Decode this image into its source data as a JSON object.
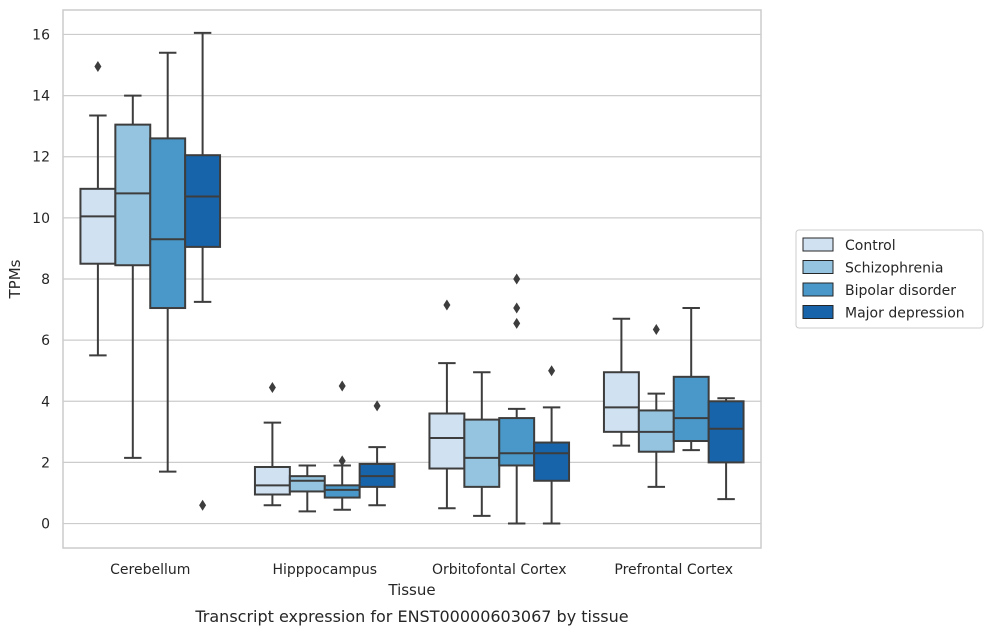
{
  "chart_data": {
    "type": "boxplot",
    "caption": "Transcript expression for ENST00000603067 by tissue",
    "xlabel": "Tissue",
    "ylabel": "TPMs",
    "ylim": [
      -0.8,
      16.8
    ],
    "yticks": [
      0,
      2,
      4,
      6,
      8,
      10,
      12,
      14,
      16
    ],
    "grid": "horizontal",
    "legend_position": "right",
    "categories": [
      "Cerebellum",
      "Hipppocampus",
      "Orbitofontal Cortex",
      "Prefrontal Cortex"
    ],
    "series": [
      {
        "name": "Control",
        "color": "#d0e1f2",
        "boxes": [
          {
            "whisker_low": 5.5,
            "q1": 8.5,
            "median": 10.05,
            "q3": 10.95,
            "whisker_high": 13.35,
            "outliers": [
              14.95
            ]
          },
          {
            "whisker_low": 0.6,
            "q1": 0.95,
            "median": 1.25,
            "q3": 1.85,
            "whisker_high": 3.3,
            "outliers": [
              4.45
            ]
          },
          {
            "whisker_low": 0.5,
            "q1": 1.8,
            "median": 2.8,
            "q3": 3.6,
            "whisker_high": 5.25,
            "outliers": [
              7.15
            ]
          },
          {
            "whisker_low": 2.55,
            "q1": 3.0,
            "median": 3.8,
            "q3": 4.95,
            "whisker_high": 6.7,
            "outliers": []
          }
        ]
      },
      {
        "name": "Schizophrenia",
        "color": "#94c4df",
        "boxes": [
          {
            "whisker_low": 2.15,
            "q1": 8.45,
            "median": 10.8,
            "q3": 13.05,
            "whisker_high": 14.0,
            "outliers": []
          },
          {
            "whisker_low": 0.4,
            "q1": 1.05,
            "median": 1.4,
            "q3": 1.55,
            "whisker_high": 1.9,
            "outliers": []
          },
          {
            "whisker_low": 0.25,
            "q1": 1.2,
            "median": 2.15,
            "q3": 3.4,
            "whisker_high": 4.95,
            "outliers": []
          },
          {
            "whisker_low": 1.2,
            "q1": 2.35,
            "median": 3.0,
            "q3": 3.7,
            "whisker_high": 4.25,
            "outliers": [
              6.35
            ]
          }
        ]
      },
      {
        "name": "Bipolar disorder",
        "color": "#4a98c9",
        "boxes": [
          {
            "whisker_low": 1.7,
            "q1": 7.05,
            "median": 9.3,
            "q3": 12.6,
            "whisker_high": 15.4,
            "outliers": []
          },
          {
            "whisker_low": 0.45,
            "q1": 0.85,
            "median": 1.1,
            "q3": 1.25,
            "whisker_high": 1.9,
            "outliers": [
              4.5,
              2.05
            ]
          },
          {
            "whisker_low": 0.0,
            "q1": 1.9,
            "median": 2.3,
            "q3": 3.45,
            "whisker_high": 3.75,
            "outliers": [
              8.0,
              7.05,
              6.55
            ]
          },
          {
            "whisker_low": 2.4,
            "q1": 2.7,
            "median": 3.45,
            "q3": 4.8,
            "whisker_high": 7.05,
            "outliers": []
          }
        ]
      },
      {
        "name": "Major depression",
        "color": "#1764ab",
        "boxes": [
          {
            "whisker_low": 7.25,
            "q1": 9.05,
            "median": 10.7,
            "q3": 12.05,
            "whisker_high": 16.05,
            "outliers": [
              0.6
            ]
          },
          {
            "whisker_low": 0.6,
            "q1": 1.2,
            "median": 1.55,
            "q3": 1.95,
            "whisker_high": 2.5,
            "outliers": [
              3.85
            ]
          },
          {
            "whisker_low": 0.0,
            "q1": 1.4,
            "median": 2.3,
            "q3": 2.65,
            "whisker_high": 3.8,
            "outliers": [
              5.0
            ]
          },
          {
            "whisker_low": 0.8,
            "q1": 2.0,
            "median": 3.1,
            "q3": 4.0,
            "whisker_high": 4.1,
            "outliers": []
          }
        ]
      }
    ]
  }
}
